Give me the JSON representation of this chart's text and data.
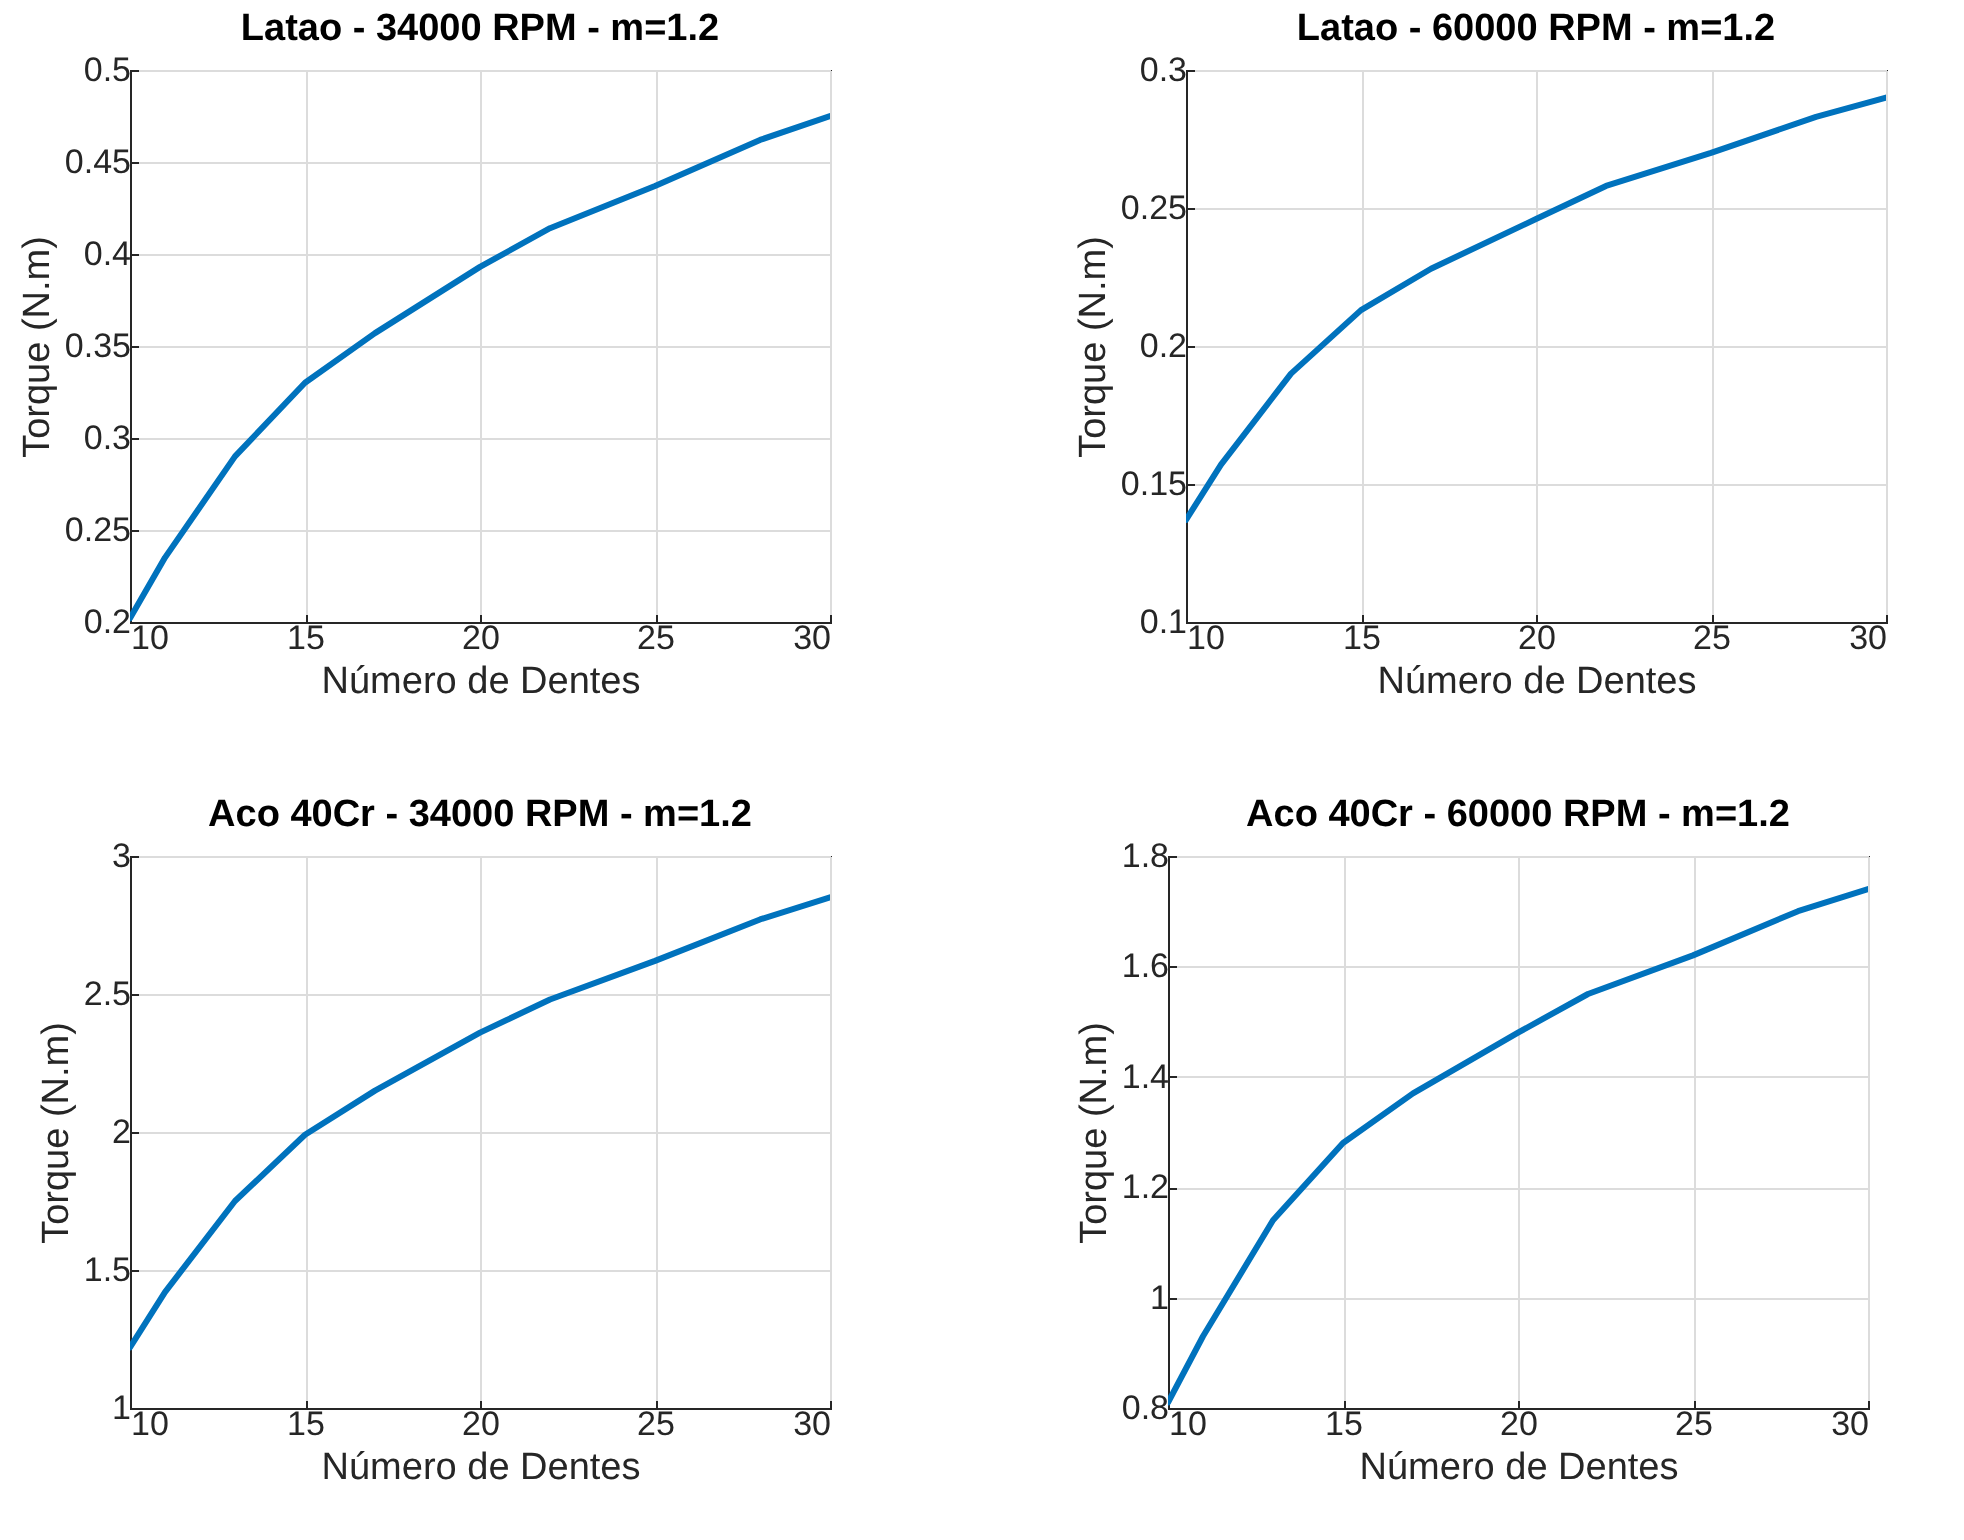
{
  "chart_data": [
    {
      "type": "line",
      "title": "Latao - 34000 RPM - m=1.2",
      "xlabel": "Número de Dentes",
      "ylabel": "Torque (N.m)",
      "x": [
        10,
        11,
        13,
        15,
        17,
        20,
        22,
        25,
        28,
        30
      ],
      "series": [
        {
          "color": "#0072bd",
          "values": [
            0.202,
            0.235,
            0.29,
            0.33,
            0.357,
            0.393,
            0.414,
            0.437,
            0.462,
            0.475
          ]
        }
      ],
      "xlim": [
        10,
        30
      ],
      "xticks": [
        10,
        15,
        20,
        25,
        30
      ],
      "ylim": [
        0.2,
        0.5
      ],
      "yticks": [
        0.2,
        0.25,
        0.3,
        0.35,
        0.4,
        0.45,
        0.5
      ],
      "grid": true
    },
    {
      "type": "line",
      "title": "Latao - 60000 RPM - m=1.2",
      "xlabel": "Número de Dentes",
      "ylabel": "Torque (N.m)",
      "x": [
        10,
        11,
        13,
        15,
        17,
        20,
        22,
        25,
        28,
        30
      ],
      "series": [
        {
          "color": "#0072bd",
          "values": [
            0.137,
            0.157,
            0.19,
            0.213,
            0.228,
            0.246,
            0.258,
            0.27,
            0.283,
            0.29
          ]
        }
      ],
      "xlim": [
        10,
        30
      ],
      "xticks": [
        10,
        15,
        20,
        25,
        30
      ],
      "ylim": [
        0.1,
        0.3
      ],
      "yticks": [
        0.1,
        0.15,
        0.2,
        0.25,
        0.3
      ],
      "grid": true
    },
    {
      "type": "line",
      "title": "Aco 40Cr - 34000 RPM - m=1.2",
      "xlabel": "Número de Dentes",
      "ylabel": "Torque (N.m)",
      "x": [
        10,
        11,
        13,
        15,
        17,
        20,
        22,
        25,
        28,
        30
      ],
      "series": [
        {
          "color": "#0072bd",
          "values": [
            1.22,
            1.42,
            1.75,
            1.99,
            2.15,
            2.36,
            2.48,
            2.62,
            2.77,
            2.85
          ]
        }
      ],
      "xlim": [
        10,
        30
      ],
      "xticks": [
        10,
        15,
        20,
        25,
        30
      ],
      "ylim": [
        1,
        3
      ],
      "yticks": [
        1,
        1.5,
        2,
        2.5,
        3
      ],
      "grid": true
    },
    {
      "type": "line",
      "title": "Aco 40Cr - 60000 RPM - m=1.2",
      "xlabel": "Número de Dentes",
      "ylabel": "Torque (N.m)",
      "x": [
        10,
        11,
        13,
        15,
        17,
        20,
        22,
        25,
        28,
        30
      ],
      "series": [
        {
          "color": "#0072bd",
          "values": [
            0.81,
            0.93,
            1.14,
            1.28,
            1.37,
            1.48,
            1.55,
            1.62,
            1.7,
            1.74
          ]
        }
      ],
      "xlim": [
        10,
        30
      ],
      "xticks": [
        10,
        15,
        20,
        25,
        30
      ],
      "ylim": [
        0.8,
        1.8
      ],
      "yticks": [
        0.8,
        1,
        1.2,
        1.4,
        1.6,
        1.8
      ],
      "grid": true
    }
  ]
}
